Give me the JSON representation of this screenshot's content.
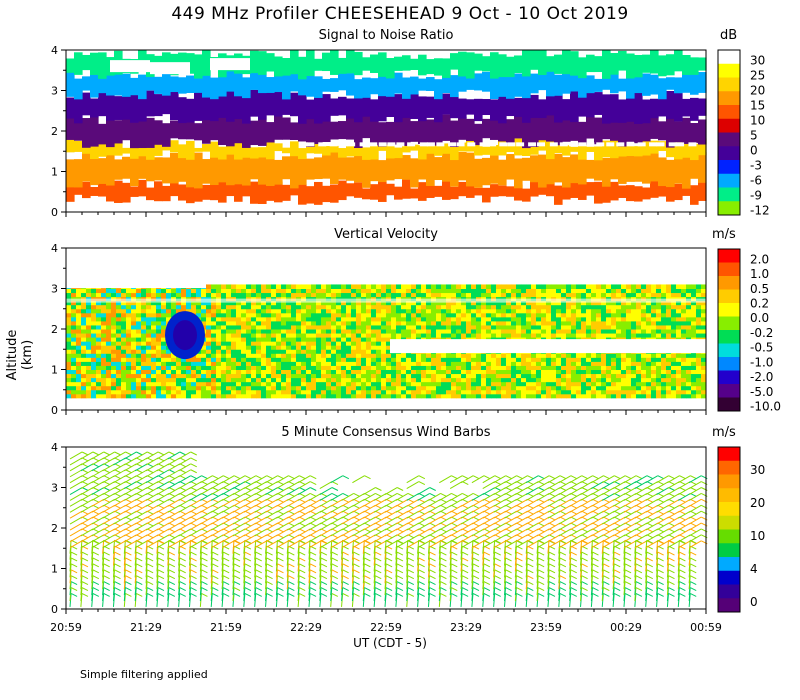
{
  "title": "449 MHz Profiler CHEESEHEAD  9 Oct - 10 Oct 2019",
  "ylabel": "Altitude (km)",
  "xlabel": "UT  (CDT - 5)",
  "footer": "Simple filtering applied",
  "chart_data": [
    {
      "type": "heatmap",
      "title": "Signal to Noise Ratio",
      "colorbar_unit": "dB",
      "x_ticks": [
        "20:59",
        "21:29",
        "21:59",
        "22:29",
        "22:59",
        "23:29",
        "23:59",
        "00:29",
        "00:59"
      ],
      "y_ticks": [
        "0",
        "1",
        "2",
        "3",
        "4"
      ],
      "ylim": [
        0,
        4
      ],
      "colorbar_labels": [
        "30",
        "25",
        "20",
        "15",
        "10",
        "5",
        "0",
        "-3",
        "-6",
        "-9",
        "-12"
      ],
      "colorbar_colors": [
        "#ffffff",
        "#ffff00",
        "#ffd400",
        "#ff9900",
        "#ff5500",
        "#dd0000",
        "#5a0a7a",
        "#440099",
        "#0022ff",
        "#00aaff",
        "#00ee88",
        "#88ee00"
      ],
      "layers": [
        {
          "from_km": 0.3,
          "to_km": 0.7,
          "value": 10
        },
        {
          "from_km": 0.7,
          "to_km": 1.4,
          "value": 15
        },
        {
          "from_km": 1.4,
          "to_km": 1.7,
          "value": 20
        },
        {
          "from_km": 1.7,
          "to_km": 2.3,
          "value": 0
        },
        {
          "from_km": 2.3,
          "to_km": 2.9,
          "value": -3
        },
        {
          "from_km": 2.9,
          "to_km": 3.4,
          "value": -9
        },
        {
          "from_km": 3.4,
          "to_km": 3.9,
          "value": -12
        }
      ]
    },
    {
      "type": "heatmap",
      "title": "Vertical Velocity",
      "colorbar_unit": "m/s",
      "x_ticks": [
        "20:59",
        "21:29",
        "21:59",
        "22:29",
        "22:59",
        "23:29",
        "23:59",
        "00:29",
        "00:59"
      ],
      "y_ticks": [
        "0",
        "1",
        "2",
        "3",
        "4"
      ],
      "ylim": [
        0,
        4
      ],
      "colorbar_labels": [
        "2.0",
        "1.0",
        "0.5",
        "0.2",
        "0.0",
        "-0.2",
        "-0.5",
        "-1.0",
        "-2.0",
        "-5.0",
        "-10.0"
      ],
      "colorbar_colors": [
        "#ff0000",
        "#ff5500",
        "#ff9900",
        "#ffcc00",
        "#ffff00",
        "#88ee00",
        "#00dd55",
        "#00dddd",
        "#0088ff",
        "#2200cc",
        "#55008a",
        "#330033"
      ],
      "dominant_range": [
        -0.2,
        0.2
      ],
      "min_feature": {
        "time": "21:44",
        "from_km": 1.3,
        "to_km": 2.4,
        "value": -2.0
      }
    },
    {
      "type": "scatter",
      "title": "5 Minute Consensus Wind Barbs",
      "colorbar_unit": "m/s",
      "x_ticks": [
        "20:59",
        "21:29",
        "21:59",
        "22:29",
        "22:59",
        "23:29",
        "23:59",
        "00:29",
        "00:59"
      ],
      "y_ticks": [
        "0",
        "1",
        "2",
        "3",
        "4"
      ],
      "ylim": [
        0,
        4
      ],
      "colorbar_labels": [
        "30",
        "20",
        "10",
        "4",
        "0"
      ],
      "colorbar_colors": [
        "#ff0000",
        "#ff6600",
        "#ff9900",
        "#ffbb00",
        "#ffdd00",
        "#ccdd00",
        "#66dd00",
        "#00cc44",
        "#00aaff",
        "#0000cc",
        "#330099",
        "#550077"
      ],
      "speed_by_level": [
        {
          "from_km": 0.0,
          "to_km": 0.4,
          "speed": 8
        },
        {
          "from_km": 0.4,
          "to_km": 1.4,
          "speed": 15
        },
        {
          "from_km": 1.4,
          "to_km": 2.6,
          "speed": 18
        },
        {
          "from_km": 2.6,
          "to_km": 4.0,
          "speed": 12
        }
      ]
    }
  ]
}
